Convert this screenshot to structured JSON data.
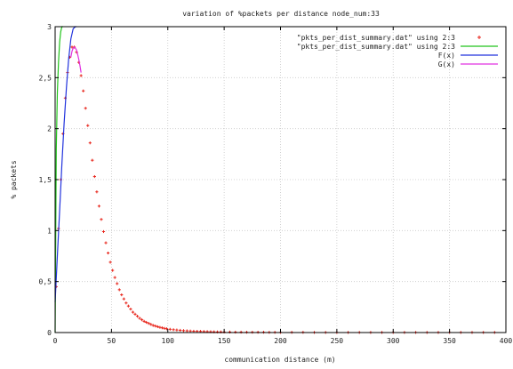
{
  "chart_data": {
    "type": "line",
    "title": "variation of %packets per distance node_num:33",
    "xlabel": "communication distance (m)",
    "ylabel": "% packets",
    "xlim": [
      0,
      400
    ],
    "ylim": [
      0,
      3
    ],
    "xticks": [
      0,
      50,
      100,
      150,
      200,
      250,
      300,
      350,
      400
    ],
    "xtick_labels": [
      "0",
      "50",
      "100",
      "150",
      "200",
      "250",
      "300",
      "350",
      "400"
    ],
    "yticks": [
      0,
      0.5,
      1,
      1.5,
      2,
      2.5,
      3
    ],
    "ytick_labels": [
      "0",
      "0,5",
      "1",
      "1,5",
      "2",
      "2,5",
      "3"
    ],
    "grid": true,
    "legend_position": "top-right",
    "series": [
      {
        "name": "\"pkts_per_dist_summary.dat\" using 2:3",
        "style": "points",
        "color": "#e8261c",
        "x": [
          1,
          3,
          5,
          7,
          9,
          11,
          13,
          15,
          17,
          19,
          21,
          23,
          25,
          27,
          29,
          31,
          33,
          35,
          37,
          39,
          41,
          43,
          45,
          47,
          49,
          51,
          53,
          55,
          57,
          59,
          61,
          63,
          65,
          67,
          69,
          71,
          73,
          75,
          77,
          79,
          81,
          83,
          85,
          87,
          89,
          91,
          93,
          95,
          97,
          99,
          102,
          105,
          108,
          111,
          114,
          117,
          120,
          123,
          126,
          129,
          132,
          135,
          138,
          141,
          144,
          147,
          150,
          155,
          160,
          165,
          170,
          175,
          180,
          185,
          190,
          195,
          200,
          210,
          220,
          230,
          240,
          250,
          260,
          270,
          280,
          290,
          300,
          310,
          320,
          330,
          340,
          350,
          360,
          370,
          380,
          390
        ],
        "y": [
          0.45,
          1.02,
          1.5,
          1.95,
          2.3,
          2.55,
          2.7,
          2.8,
          2.8,
          2.75,
          2.65,
          2.52,
          2.37,
          2.2,
          2.03,
          1.86,
          1.69,
          1.53,
          1.38,
          1.24,
          1.11,
          0.99,
          0.88,
          0.78,
          0.69,
          0.61,
          0.54,
          0.48,
          0.42,
          0.37,
          0.33,
          0.29,
          0.26,
          0.23,
          0.2,
          0.18,
          0.16,
          0.14,
          0.125,
          0.11,
          0.1,
          0.09,
          0.08,
          0.07,
          0.064,
          0.057,
          0.051,
          0.046,
          0.041,
          0.037,
          0.032,
          0.028,
          0.025,
          0.022,
          0.019,
          0.017,
          0.015,
          0.013,
          0.012,
          0.011,
          0.01,
          0.009,
          0.008,
          0.007,
          0.006,
          0.006,
          0.005,
          0.005,
          0.004,
          0.004,
          0.003,
          0.003,
          0.003,
          0.003,
          0.002,
          0.002,
          0.002,
          0.002,
          0.002,
          0.001,
          0.001,
          0.001,
          0.001,
          0.001,
          0.001,
          0.001,
          0.001,
          0.001,
          0.001,
          0.001,
          0.001,
          0.001,
          0.001,
          0.001,
          0.001,
          0.001
        ]
      },
      {
        "name": "\"pkts_per_dist_summary.dat\" using 2:3",
        "style": "line",
        "color": "#22c41c",
        "x": [
          0,
          1,
          2,
          3,
          4,
          5,
          6,
          7
        ],
        "y": [
          0,
          1.8,
          2.35,
          2.65,
          2.85,
          2.95,
          3.0,
          3.1
        ]
      },
      {
        "name": "F(x)",
        "style": "line",
        "color": "#2233dd",
        "x": [
          0,
          2,
          4,
          6,
          8,
          10,
          12,
          14,
          16,
          18,
          19
        ],
        "y": [
          0.3,
          0.75,
          1.2,
          1.65,
          2.05,
          2.4,
          2.68,
          2.88,
          2.98,
          3.02,
          3.05
        ]
      },
      {
        "name": "G(x)",
        "style": "line",
        "color": "#e030e0",
        "x": [
          14,
          15,
          16,
          17,
          18,
          19,
          20,
          21,
          22,
          23
        ],
        "y": [
          2.7,
          2.76,
          2.79,
          2.8,
          2.79,
          2.77,
          2.73,
          2.68,
          2.62,
          2.55
        ]
      }
    ]
  }
}
